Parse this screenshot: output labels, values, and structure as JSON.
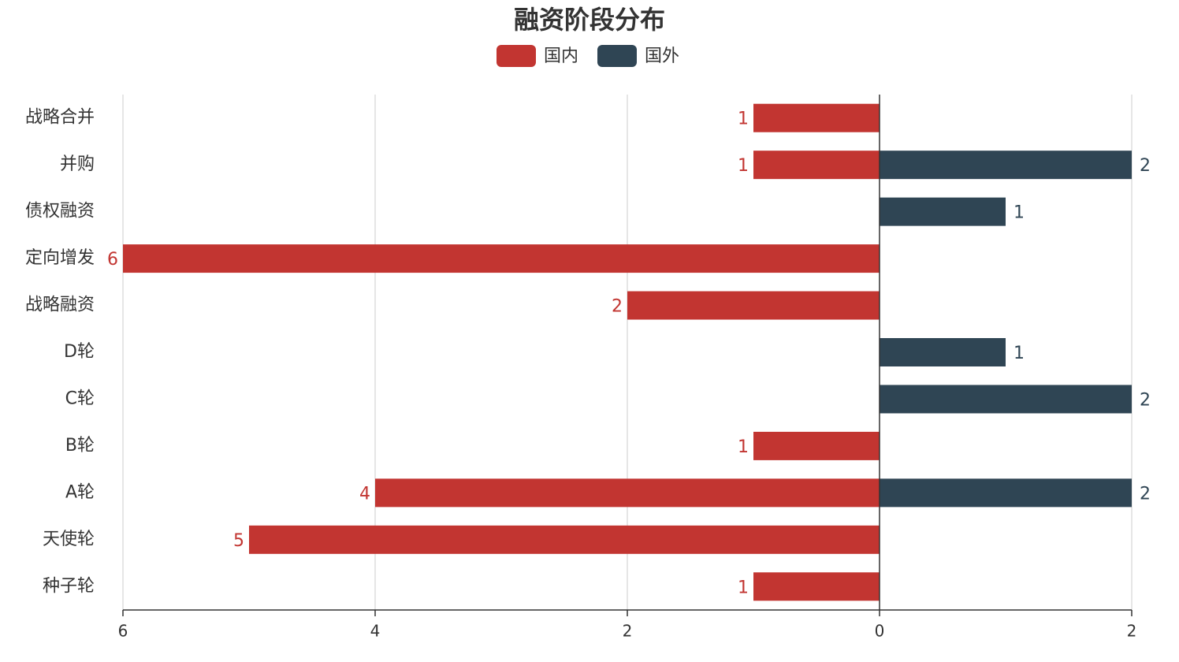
{
  "chart_data": {
    "type": "diverging-bar",
    "title": "融资阶段分布",
    "categories": [
      "战略合并",
      "并购",
      "债权融资",
      "定向增发",
      "战略融资",
      "D轮",
      "C轮",
      "B轮",
      "A轮",
      "天使轮",
      "种子轮"
    ],
    "series": [
      {
        "name": "国内",
        "color": "#c23531",
        "values": [
          -1,
          -1,
          null,
          -6,
          -2,
          null,
          null,
          -1,
          -4,
          -5,
          -1
        ],
        "value_labels": [
          "1",
          "1",
          null,
          "6",
          "2",
          null,
          null,
          "1",
          "4",
          "5",
          "1"
        ]
      },
      {
        "name": "国外",
        "color": "#2f4554",
        "values": [
          null,
          2,
          1,
          null,
          null,
          1,
          2,
          null,
          2,
          null,
          null
        ]
      }
    ],
    "xlim": [
      -6,
      2
    ],
    "xticks": [
      {
        "value": -6,
        "label": "6"
      },
      {
        "value": -4,
        "label": "4"
      },
      {
        "value": -2,
        "label": "2"
      },
      0,
      2
    ],
    "grid": true
  }
}
